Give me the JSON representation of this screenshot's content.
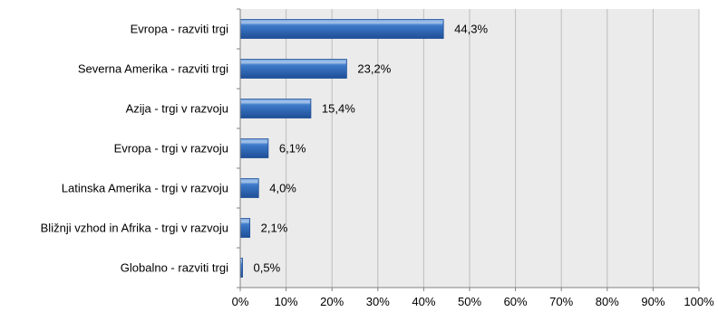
{
  "chart_data": {
    "type": "bar",
    "orientation": "horizontal",
    "categories": [
      "Evropa - razviti trgi",
      "Severna Amerika - razviti trgi",
      "Azija - trgi v razvoju",
      "Evropa - trgi v razvoju",
      "Latinska Amerika - trgi v razvoju",
      "Bližnji vzhod in Afrika - trgi v razvoju",
      "Globalno - razviti trgi"
    ],
    "values": [
      44.3,
      23.2,
      15.4,
      6.1,
      4.0,
      2.1,
      0.5
    ],
    "value_labels": [
      "44,3%",
      "23,2%",
      "15,4%",
      "6,1%",
      "4,0%",
      "2,1%",
      "0,5%"
    ],
    "xlim": [
      0,
      100
    ],
    "xticks": [
      "0%",
      "10%",
      "20%",
      "30%",
      "40%",
      "50%",
      "60%",
      "70%",
      "80%",
      "90%",
      "100%"
    ],
    "grid": true,
    "legend": "none",
    "title": "",
    "xlabel": "",
    "ylabel": "",
    "colors": {
      "bar_main": "#3c78c8",
      "bar_light": "#8fb8ea",
      "bar_dark": "#1f4f96",
      "plot_bg": "#ebebeb",
      "grid": "#bdbdbd"
    }
  }
}
